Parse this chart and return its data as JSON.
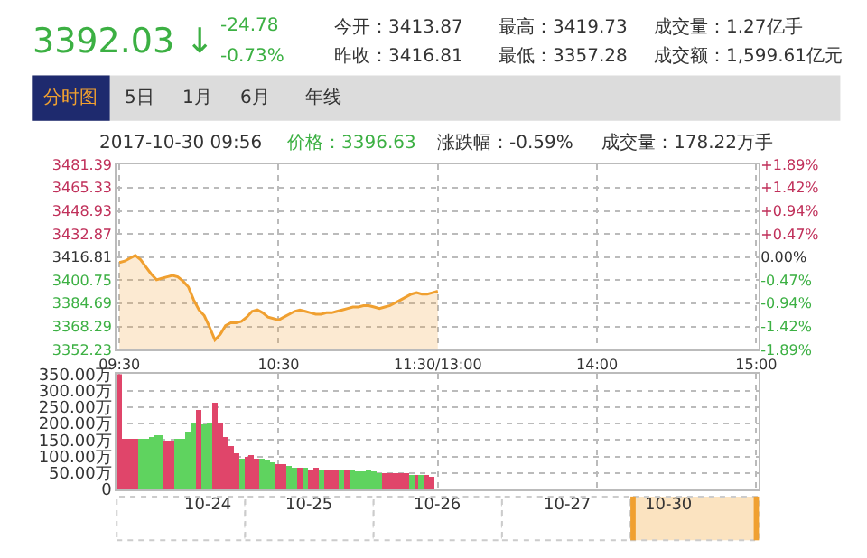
{
  "chart_data": [
    {
      "type": "area",
      "annotations": [
        "3392.03 ↓",
        "-24.78",
        "-0.73%",
        "今开：3413.87",
        "昨收：3416.81",
        "最高：3419.73",
        "最低：3357.28",
        "成交量：1.27亿手",
        "成交额：1,599.61亿元",
        "分时图",
        "5日",
        "1月",
        "6月",
        "年线",
        "2017-10-30 09:56",
        "价格：3396.63",
        "涨跌幅：-0.59%",
        "成交量：178.22万手"
      ],
      "categories": [
        "09:30",
        null,
        null,
        null,
        null,
        null,
        null,
        null,
        null,
        null,
        null,
        null,
        null,
        null,
        null,
        null,
        null,
        null,
        null,
        null,
        null,
        null,
        null,
        null,
        null,
        null,
        null,
        null,
        null,
        null,
        "10:30",
        null,
        null,
        null,
        null,
        null,
        null,
        null,
        null,
        null,
        null,
        null,
        null,
        null,
        null,
        null,
        null,
        null,
        null,
        null,
        null,
        null,
        null,
        null,
        null,
        null,
        null,
        null,
        null,
        null,
        "11:30/13:00",
        null,
        null,
        null,
        null,
        null,
        null,
        null,
        null,
        null,
        null,
        null,
        null,
        null,
        null,
        null,
        null,
        null,
        null,
        null,
        null,
        null,
        null,
        null,
        null,
        null,
        null,
        null,
        null,
        null,
        "14:00",
        null,
        null,
        null,
        null,
        null,
        null,
        null,
        null,
        null,
        null,
        null,
        null,
        null,
        null,
        null,
        null,
        null,
        null,
        null,
        null,
        null,
        null,
        null,
        null,
        null,
        null,
        null,
        null,
        null,
        "15:00"
      ],
      "series": [
        {
          "color": "#f0a030",
          "values": [
            3413,
            3414,
            3416,
            3418,
            3415,
            3410,
            3405,
            3401,
            3402,
            3403,
            3404,
            3403,
            3400,
            3396,
            3387,
            3380,
            3376,
            3368,
            3359,
            3363,
            3369,
            3371,
            3371,
            3372,
            3375,
            3379,
            3380,
            3378,
            3375,
            3374,
            3373,
            3375,
            3377,
            3379,
            3380,
            3379,
            3378,
            3377,
            3377,
            3378,
            3378,
            3379,
            3380,
            3381,
            3382,
            3382,
            3383,
            3383,
            3382,
            3381,
            3382,
            3383,
            3385,
            3387,
            3389,
            3391,
            3392,
            3391,
            3391,
            3392,
            3393,
            null,
            null,
            null,
            null,
            null,
            null,
            null,
            null,
            null,
            null,
            null,
            null,
            null,
            null,
            null,
            null,
            null,
            null,
            null,
            null,
            null,
            null,
            null,
            null,
            null,
            null,
            null,
            null,
            null,
            null,
            null,
            null,
            null,
            null,
            null,
            null,
            null,
            null,
            null,
            null,
            null,
            null,
            null,
            null,
            null,
            null,
            null,
            null,
            null,
            null,
            null,
            null,
            null,
            null,
            null,
            null,
            null,
            null,
            null,
            null
          ]
        }
      ],
      "ylim": [
        3352.23,
        3481.39
      ],
      "yticks": [
        3352.23,
        3368.29,
        3384.69,
        3400.75,
        3416.81,
        3432.87,
        3448.93,
        3465.33,
        3481.39
      ],
      "y2lim": [
        -1.89,
        1.89
      ],
      "y2ticks": [
        {
          "value": -1.89,
          "label": "-1.89%"
        },
        {
          "value": -1.42,
          "label": "-1.42%"
        },
        {
          "value": -0.94,
          "label": "-0.94%"
        },
        {
          "value": -0.47,
          "label": "-0.47%"
        },
        {
          "value": 0,
          "label": "0.00%"
        },
        {
          "value": 0.47,
          "label": "+0.47%"
        },
        {
          "value": 0.94,
          "label": "+0.94%"
        },
        {
          "value": 1.42,
          "label": "+1.42%"
        },
        {
          "value": 1.89,
          "label": "+1.89%"
        }
      ],
      "grid": true
    },
    {
      "type": "bar",
      "annotations": [
        "10-24",
        "10-25",
        "10-26",
        "10-27",
        "10-30"
      ],
      "categories": [
        null,
        null,
        null,
        null,
        null,
        null,
        null,
        null,
        null,
        null,
        null,
        null,
        null,
        null,
        null,
        null,
        null,
        null,
        null,
        null,
        null,
        null,
        null,
        null,
        null,
        null,
        null,
        null,
        null,
        null,
        null,
        null,
        null,
        null,
        null,
        null,
        null,
        null,
        null,
        null,
        null,
        null,
        null,
        null,
        null,
        null,
        null,
        null,
        null,
        null,
        null,
        null,
        null,
        null,
        null,
        null,
        null,
        null,
        null,
        null,
        null,
        null,
        null,
        null,
        null,
        null,
        null,
        null,
        null,
        null,
        null,
        null,
        null,
        null,
        null,
        null,
        null,
        null,
        null,
        null,
        null,
        null,
        null,
        null,
        null,
        null,
        null,
        null,
        null,
        null,
        null,
        null,
        null,
        null,
        null,
        null,
        null,
        null,
        null,
        null,
        null,
        null,
        null,
        null,
        null,
        null,
        null,
        null,
        null,
        null,
        null,
        null,
        null,
        null,
        null,
        null,
        null,
        null,
        null,
        null,
        null
      ],
      "values": [
        350,
        150,
        150,
        155,
        155,
        150,
        160,
        165,
        165,
        145,
        145,
        150,
        155,
        175,
        200,
        240,
        195,
        200,
        260,
        200,
        160,
        130,
        110,
        95,
        100,
        105,
        95,
        90,
        85,
        80,
        75,
        75,
        70,
        65,
        65,
        65,
        60,
        65,
        60,
        62,
        60,
        58,
        60,
        58,
        60,
        55,
        55,
        58,
        55,
        50,
        50,
        48,
        50,
        50,
        48,
        45,
        45,
        45,
        42,
        40,
        null,
        null,
        null,
        null,
        null,
        null,
        null,
        null,
        null,
        null,
        null,
        null,
        null,
        null,
        null,
        null,
        null,
        null,
        null,
        null,
        null,
        null,
        null,
        null,
        null,
        null,
        null,
        null,
        null,
        null,
        null,
        null,
        null,
        null,
        null,
        null,
        null,
        null,
        null,
        null,
        null,
        null,
        null,
        null,
        null,
        null,
        null,
        null,
        null,
        null,
        null,
        null,
        null,
        null,
        null,
        null,
        null,
        null,
        null,
        null,
        null
      ],
      "colors": [
        "#e0456a",
        "#e0456a",
        "#e0456a",
        "#e0456a",
        "#5fd35f",
        "#5fd35f",
        "#5fd35f",
        "#5fd35f",
        "#5fd35f",
        "#e0456a",
        "#e0456a",
        "#5fd35f",
        "#5fd35f",
        "#5fd35f",
        "#5fd35f",
        "#e0456a",
        "#5fd35f",
        "#5fd35f",
        "#e0456a",
        "#e0456a",
        "#e0456a",
        "#e0456a",
        "#e0456a",
        "#5fd35f",
        "#e0456a",
        "#e0456a",
        "#e0456a",
        "#5fd35f",
        "#5fd35f",
        "#5fd35f",
        "#e0456a",
        "#e0456a",
        "#5fd35f",
        "#5fd35f",
        "#e0456a",
        "#5fd35f",
        "#e0456a",
        "#e0456a",
        "#5fd35f",
        "#e0456a",
        "#e0456a",
        "#e0456a",
        "#5fd35f",
        "#e0456a",
        "#5fd35f",
        "#5fd35f",
        "#5fd35f",
        "#5fd35f",
        "#5fd35f",
        "#5fd35f",
        "#e0456a",
        "#e0456a",
        "#e0456a",
        "#e0456a",
        "#e0456a",
        "#5fd35f",
        "#e0456a",
        "#5fd35f",
        "#e0456a",
        "#e0456a",
        null,
        null,
        null,
        null,
        null,
        null,
        null,
        null,
        null,
        null,
        null,
        null,
        null,
        null,
        null,
        null,
        null,
        null,
        null,
        null,
        null,
        null,
        null,
        null,
        null,
        null,
        null,
        null,
        null,
        null,
        null,
        null,
        null,
        null,
        null,
        null,
        null,
        null,
        null,
        null,
        null,
        null,
        null,
        null,
        null,
        null,
        null,
        null,
        null,
        null,
        null,
        null,
        null,
        null,
        null,
        null,
        null,
        null,
        null,
        null,
        null
      ],
      "ylim": [
        0,
        350
      ],
      "yticks": [
        0,
        {
          "value": 50,
          "label": "50.00万"
        },
        {
          "value": 100,
          "label": "100.00万"
        },
        {
          "value": 150,
          "label": "150.00万"
        },
        {
          "value": 200,
          "label": "200.00万"
        },
        {
          "value": 250,
          "label": "250.00万"
        },
        {
          "value": 300,
          "label": "300.00万"
        },
        {
          "value": 350,
          "label": "350.00万"
        }
      ],
      "tick_labels": "y",
      "grid": true
    }
  ]
}
